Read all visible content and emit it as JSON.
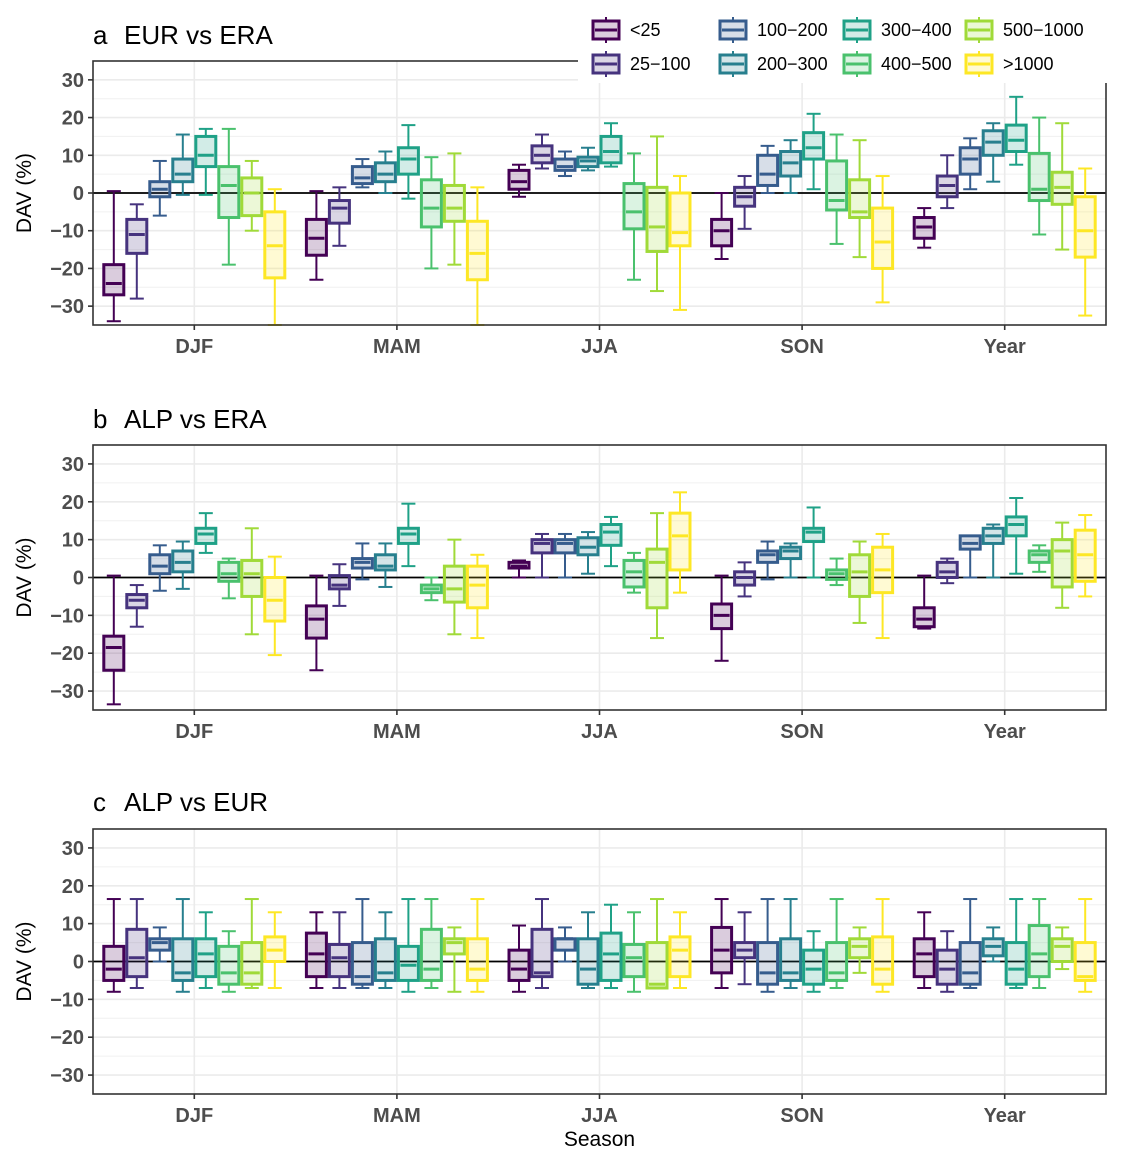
{
  "chart_data": {
    "type": "boxplot",
    "xlabel": "Season",
    "ylabel": "DAV (%)",
    "ylim": [
      -35,
      35
    ],
    "yticks": [
      -30,
      -20,
      -10,
      0,
      10,
      20,
      30
    ],
    "categories": [
      "DJF",
      "MAM",
      "JJA",
      "SON",
      "Year"
    ],
    "legend": {
      "position": "top-right",
      "groups": [
        "<25",
        "25−100",
        "100−200",
        "200−300",
        "300−400",
        "400−500",
        "500−1000",
        ">1000"
      ],
      "colors": [
        "#440154",
        "#46337e",
        "#365c8d",
        "#277f8e",
        "#1fa187",
        "#4ac16d",
        "#a0da39",
        "#fde725"
      ]
    },
    "panels": [
      {
        "letter": "a",
        "title": "EUR vs ERA",
        "boxes": [
          [
            [
              -34,
              -27,
              -24,
              -19,
              0.5
            ],
            [
              -28,
              -16,
              -11,
              -7,
              -3
            ],
            [
              -6,
              -1,
              1,
              3,
              8.5
            ],
            [
              -0.5,
              3,
              5,
              9,
              15.5
            ],
            [
              -0.5,
              7,
              10,
              15,
              17
            ],
            [
              -19,
              -6.5,
              2,
              7,
              17
            ],
            [
              -10,
              -6,
              0,
              4,
              8.5
            ],
            [
              -35,
              -22.5,
              -14,
              -5,
              1
            ]
          ],
          [
            [
              -23,
              -16.5,
              -12,
              -7,
              0.5
            ],
            [
              -14,
              -8,
              -4,
              -2,
              1.5
            ],
            [
              1.5,
              2.5,
              4,
              7,
              9
            ],
            [
              0,
              3,
              5,
              8,
              11
            ],
            [
              -1.5,
              5,
              9,
              12,
              18
            ],
            [
              -20,
              -9,
              -4,
              3.5,
              9.5
            ],
            [
              -19,
              -7.5,
              -4,
              2,
              10.5
            ],
            [
              -35,
              -23,
              -16,
              -7.5,
              1.5
            ]
          ],
          [
            [
              -1,
              1,
              3,
              6,
              7.5
            ],
            [
              6.5,
              8,
              10,
              12.5,
              15.5
            ],
            [
              4.5,
              6,
              7,
              9,
              11
            ],
            [
              6,
              7,
              8.5,
              9.5,
              12
            ],
            [
              7,
              8,
              11,
              15,
              18.5
            ],
            [
              -23,
              -9.5,
              -5,
              2.5,
              10.5
            ],
            [
              -26,
              -15.5,
              -9,
              1.5,
              15
            ],
            [
              -31,
              -14,
              -10.5,
              0,
              4.5
            ]
          ],
          [
            [
              -17.5,
              -14,
              -10,
              -7,
              0
            ],
            [
              -9.5,
              -3.5,
              -1,
              1.5,
              4.5
            ],
            [
              0,
              2,
              5,
              10,
              12.5
            ],
            [
              0,
              4.5,
              8,
              11,
              14
            ],
            [
              1,
              9,
              12,
              16,
              21
            ],
            [
              -13.5,
              -4.5,
              -2,
              8.5,
              15.5
            ],
            [
              -17,
              -6.5,
              -5,
              3.5,
              14
            ],
            [
              -29,
              -20,
              -13,
              -4,
              4.5
            ]
          ],
          [
            [
              -14.5,
              -12,
              -9,
              -6.5,
              -4
            ],
            [
              -4,
              -1,
              2,
              4.5,
              10
            ],
            [
              1,
              5,
              9,
              12,
              14.5
            ],
            [
              3,
              10,
              13.5,
              16.5,
              18.5
            ],
            [
              7.5,
              11,
              14,
              18,
              25.5
            ],
            [
              -11,
              -2,
              1,
              10.5,
              20
            ],
            [
              -15,
              -3,
              1.5,
              5.5,
              18.5
            ],
            [
              -32.5,
              -17,
              -10,
              -1,
              6.5
            ]
          ]
        ]
      },
      {
        "letter": "b",
        "title": "ALP vs ERA",
        "boxes": [
          [
            [
              -33.5,
              -24.5,
              -18.5,
              -15.5,
              0.5
            ],
            [
              -13,
              -8,
              -6,
              -4.5,
              -2
            ],
            [
              -3.5,
              1,
              3,
              6,
              8.5
            ],
            [
              -3,
              1.5,
              4,
              7,
              9.5
            ],
            [
              6.5,
              9,
              11.5,
              13,
              17
            ],
            [
              -5.5,
              -1,
              1,
              4,
              5
            ],
            [
              -15,
              -5,
              1,
              4.5,
              13
            ],
            [
              -20.5,
              -11.5,
              -6,
              0,
              5.5
            ]
          ],
          [
            [
              -24.5,
              -16,
              -11,
              -7.5,
              0.5
            ],
            [
              -7.5,
              -3,
              -2,
              0.5,
              3.5
            ],
            [
              -0.5,
              2.5,
              4,
              5,
              9
            ],
            [
              -2.5,
              2,
              3,
              6,
              9
            ],
            [
              3,
              9,
              11.5,
              13,
              19.5
            ],
            [
              -6,
              -4,
              -3,
              -2,
              0
            ],
            [
              -15,
              -6.5,
              -3,
              3,
              10
            ],
            [
              -16,
              -8,
              -2,
              3,
              6
            ]
          ],
          [
            [
              0,
              2.5,
              3,
              4,
              4.5
            ],
            [
              0,
              6.5,
              9,
              10,
              11.5
            ],
            [
              0,
              6.5,
              9,
              10,
              11.5
            ],
            [
              1,
              6,
              8,
              10.5,
              12
            ],
            [
              3,
              8.5,
              12,
              14,
              16
            ],
            [
              -4,
              -2.5,
              1.5,
              4.5,
              6.5
            ],
            [
              -16,
              -8,
              4,
              7.5,
              17
            ],
            [
              -4,
              2,
              11,
              17,
              22.5
            ]
          ],
          [
            [
              -22,
              -13.5,
              -10,
              -7,
              0.5
            ],
            [
              -5,
              -2,
              0,
              1.5,
              4
            ],
            [
              -0.5,
              4,
              6,
              7,
              9.5
            ],
            [
              0,
              5,
              7,
              8,
              9
            ],
            [
              0,
              9.5,
              12,
              13,
              18.5
            ],
            [
              -2,
              -0.5,
              1,
              2,
              5
            ],
            [
              -12,
              -5,
              1.5,
              6,
              9.5
            ],
            [
              -16,
              -4,
              2,
              8,
              11.5
            ]
          ],
          [
            [
              -13.5,
              -13,
              -11,
              -8,
              0.5
            ],
            [
              -1.5,
              0,
              1.5,
              4,
              5
            ],
            [
              0,
              7.5,
              9,
              11,
              11
            ],
            [
              0,
              9,
              11,
              13,
              14
            ],
            [
              1,
              11,
              14,
              16,
              21
            ],
            [
              1.5,
              4,
              6,
              7,
              8.5
            ],
            [
              -8,
              -2.5,
              7,
              10,
              14.5
            ],
            [
              -5,
              -1,
              6,
              12.5,
              16.5
            ]
          ]
        ]
      },
      {
        "letter": "c",
        "title": "ALP vs EUR",
        "boxes": [
          [
            [
              -8,
              -5,
              -2,
              4,
              16.5
            ],
            [
              -7,
              -4,
              1,
              8.5,
              16.5
            ],
            [
              0,
              3,
              5,
              6,
              9
            ],
            [
              -8,
              -5,
              -3,
              6,
              16.5
            ],
            [
              -7,
              -4,
              2,
              6,
              13
            ],
            [
              -8,
              -6,
              -3,
              4,
              8
            ],
            [
              -7,
              -6,
              -3,
              5,
              16.5
            ],
            [
              -7,
              0,
              3,
              6.5,
              13
            ]
          ],
          [
            [
              -7,
              -4,
              2,
              7.5,
              13
            ],
            [
              -7,
              -4,
              1,
              4.5,
              13
            ],
            [
              -7,
              -6,
              -4,
              5,
              16.5
            ],
            [
              -7,
              -5,
              -3,
              6,
              13
            ],
            [
              -8,
              -5,
              -1,
              4,
              16.5
            ],
            [
              -7,
              -5,
              -2,
              8.5,
              16.5
            ],
            [
              -8,
              2,
              5,
              6,
              9
            ],
            [
              -8,
              -5,
              -2,
              6,
              16.5
            ]
          ],
          [
            [
              -8,
              -5,
              -2,
              3,
              9.5
            ],
            [
              -7,
              -4,
              -3,
              8.5,
              16.5
            ],
            [
              0,
              3,
              6,
              6,
              9
            ],
            [
              -7,
              -6,
              -2,
              6,
              13
            ],
            [
              -7,
              -5,
              2,
              7.5,
              15
            ],
            [
              -8,
              -4,
              1,
              4.5,
              13
            ],
            [
              -7,
              -7,
              -6,
              5,
              16.5
            ],
            [
              -7,
              -4,
              3,
              6.5,
              13
            ]
          ],
          [
            [
              -7,
              -3,
              3,
              9,
              16.5
            ],
            [
              -6,
              1,
              3,
              5,
              13
            ],
            [
              -8,
              -6,
              -3,
              5,
              16.5
            ],
            [
              -7,
              -5,
              -3,
              6,
              16.5
            ],
            [
              -8,
              -6,
              -2,
              3,
              8
            ],
            [
              -7,
              -5,
              -3,
              5,
              16.5
            ],
            [
              -3,
              1,
              4,
              6,
              9
            ],
            [
              -8,
              -6,
              -2,
              6.5,
              16.5
            ]
          ],
          [
            [
              -7,
              -4,
              2,
              6,
              13
            ],
            [
              -8,
              -6,
              -2,
              3,
              8
            ],
            [
              -7,
              -6,
              -3,
              5,
              16.5
            ],
            [
              0,
              1.5,
              4,
              6,
              9
            ],
            [
              -7,
              -6,
              -2,
              5,
              16.5
            ],
            [
              -7,
              -4,
              2,
              9.5,
              16.5
            ],
            [
              -2,
              0,
              4,
              6,
              9
            ],
            [
              -8,
              -5,
              -4,
              5,
              16.5
            ]
          ]
        ]
      }
    ]
  }
}
